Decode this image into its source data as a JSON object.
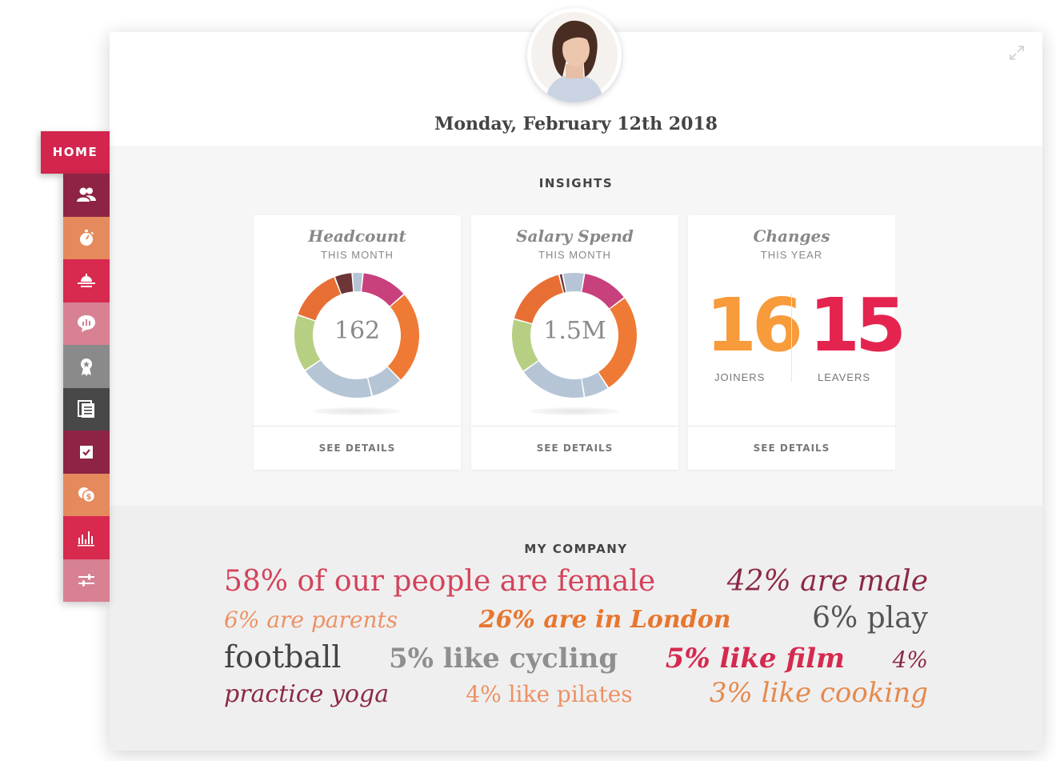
{
  "header": {
    "date": "Monday, February 12th 2018",
    "avatar_alt": "user photo"
  },
  "nav": {
    "home_label": "HOME",
    "items": [
      {
        "icon": "people-icon",
        "color": "#8e2344"
      },
      {
        "icon": "stopwatch-icon",
        "color": "#e58a5c"
      },
      {
        "icon": "sun-horizon-icon",
        "color": "#d8294f"
      },
      {
        "icon": "chat-chart-icon",
        "color": "#d78193"
      },
      {
        "icon": "award-icon",
        "color": "#8a8a8a"
      },
      {
        "icon": "documents-icon",
        "color": "#484848"
      },
      {
        "icon": "checkbox-icon",
        "color": "#8e2344"
      },
      {
        "icon": "coins-icon",
        "color": "#e58a5c"
      },
      {
        "icon": "bar-chart-icon",
        "color": "#d8294f"
      },
      {
        "icon": "sliders-icon",
        "color": "#d78193"
      }
    ]
  },
  "insights": {
    "title": "INSIGHTS",
    "cards": [
      {
        "title": "Headcount",
        "subtitle": "THIS MONTH",
        "value": "162",
        "footer": "SEE DETAILS",
        "chart_data": {
          "type": "pie",
          "segments": [
            {
              "value": 5,
              "color": "#6e3537"
            },
            {
              "value": 3,
              "color": "#b5c5d6"
            },
            {
              "value": 13,
              "color": "#c8417c"
            },
            {
              "value": 26,
              "color": "#ef7a35"
            },
            {
              "value": 9,
              "color": "#b5c5d6"
            },
            {
              "value": 21,
              "color": "#b5c5d6"
            },
            {
              "value": 16,
              "color": "#b7cf82"
            },
            {
              "value": 15,
              "color": "#e86f33"
            }
          ]
        }
      },
      {
        "title": "Salary Spend",
        "subtitle": "THIS MONTH",
        "value": "1.5M",
        "footer": "SEE DETAILS",
        "chart_data": {
          "type": "pie",
          "segments": [
            {
              "value": 1,
              "color": "#6e3537"
            },
            {
              "value": 6,
              "color": "#b5c5d6"
            },
            {
              "value": 13,
              "color": "#c8417c"
            },
            {
              "value": 28,
              "color": "#ef7a35"
            },
            {
              "value": 7,
              "color": "#b5c5d6"
            },
            {
              "value": 19,
              "color": "#b5c5d6"
            },
            {
              "value": 15,
              "color": "#b7cf82"
            },
            {
              "value": 18,
              "color": "#e86f33"
            }
          ]
        }
      },
      {
        "title": "Changes",
        "subtitle": "THIS YEAR",
        "footer": "SEE DETAILS",
        "joiners": {
          "value": "16",
          "label": "JOINERS",
          "color": "#f79b3b"
        },
        "leavers": {
          "value": "15",
          "label": "LEAVERS",
          "color": "#e4244f"
        }
      }
    ]
  },
  "company": {
    "title": "MY COMPANY",
    "lines": [
      [
        {
          "text": "58% of our people are female",
          "color": "#d2445a",
          "size": 36,
          "style": "normal",
          "weight": "normal"
        },
        {
          "text": "42% are male",
          "color": "#8b2a45",
          "size": 36,
          "style": "italic",
          "weight": "normal"
        }
      ],
      [
        {
          "text": "6% are parents",
          "color": "#ec9264",
          "size": 28,
          "style": "italic",
          "weight": "normal"
        },
        {
          "text": "26% are in London",
          "color": "#e7772f",
          "size": 30,
          "style": "italic",
          "weight": "bold"
        },
        {
          "text": "6% play",
          "color": "#555555",
          "size": 36,
          "style": "normal",
          "weight": "normal"
        }
      ],
      [
        {
          "text": "football",
          "color": "#444444",
          "size": 38,
          "style": "normal",
          "weight": "normal"
        },
        {
          "text": "5% like cycling",
          "color": "#8f8f8f",
          "size": 34,
          "style": "normal",
          "weight": "bold"
        },
        {
          "text": "5% like film",
          "color": "#d52a4f",
          "size": 34,
          "style": "italic",
          "weight": "bold"
        },
        {
          "text": "4%",
          "color": "#8b2a45",
          "size": 28,
          "style": "italic",
          "weight": "normal"
        }
      ],
      [
        {
          "text": "practice yoga",
          "color": "#8b2a45",
          "size": 30,
          "style": "italic",
          "weight": "normal"
        },
        {
          "text": "4% like pilates",
          "color": "#ec9264",
          "size": 28,
          "style": "normal",
          "weight": "normal"
        },
        {
          "text": "3% like cooking",
          "color": "#e58a4c",
          "size": 34,
          "style": "italic",
          "weight": "normal"
        }
      ]
    ]
  }
}
